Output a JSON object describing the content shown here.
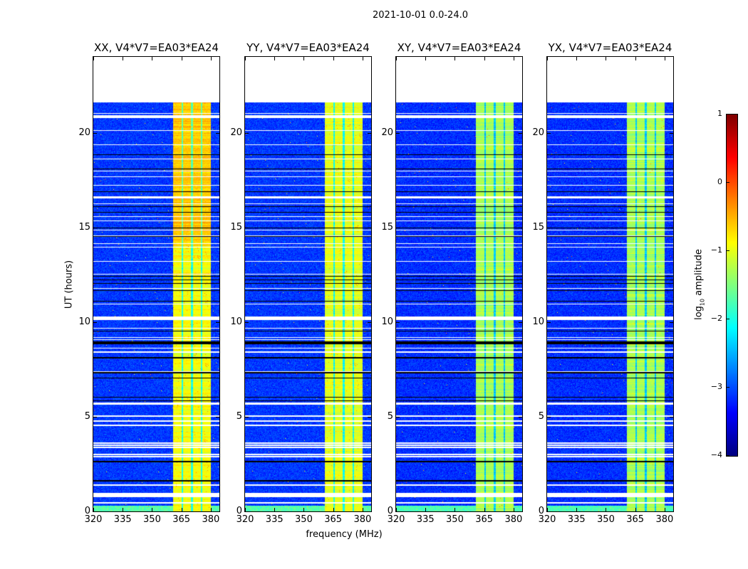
{
  "chart_data": {
    "type": "heatmap",
    "title": "2021-10-01 0.0-24.0",
    "xlabel": "frequency (MHz)",
    "ylabel": "UT (hours)",
    "xlim": [
      320,
      384.4
    ],
    "ylim": [
      0,
      24
    ],
    "xticks": [
      320,
      335,
      350,
      365,
      380
    ],
    "yticks": [
      0,
      5,
      10,
      15,
      20
    ],
    "colormap": "jet",
    "colorbar": {
      "label_main": "log",
      "label_sub": "10",
      "label_rest": " amplitude",
      "range": [
        -4,
        1
      ],
      "ticks": [
        1,
        0,
        -1,
        -2,
        -3,
        -4
      ]
    },
    "data_end_hour": 21.6,
    "panels": [
      {
        "title": "XX, V4*V7=EA03*EA24",
        "background_level": -3.1,
        "band_level": -0.9,
        "hot_level": -0.3
      },
      {
        "title": "YY, V4*V7=EA03*EA24",
        "background_level": -3.1,
        "band_level": -1.0,
        "hot_level": -0.4
      },
      {
        "title": "XY, V4*V7=EA03*EA24",
        "background_level": -3.15,
        "band_level": -1.3,
        "hot_level": -1.0
      },
      {
        "title": "YX, V4*V7=EA03*EA24",
        "background_level": -3.15,
        "band_level": -1.3,
        "hot_level": -0.9
      }
    ],
    "rfi_band_mhz": [
      360.7,
      380.0
    ],
    "rfi_band_gaps_mhz": [
      365.5,
      370.5,
      375.3
    ],
    "flagged_hours": [
      [
        21.01,
        0.05
      ],
      [
        20.83,
        0.15
      ],
      [
        20.11,
        0.05
      ],
      [
        19.36,
        0.05
      ],
      [
        18.61,
        0.05
      ],
      [
        17.97,
        0.05
      ],
      [
        17.67,
        0.05
      ],
      [
        17.22,
        0.05
      ],
      [
        16.59,
        0.1
      ],
      [
        16.25,
        0.05
      ],
      [
        15.57,
        0.05
      ],
      [
        15.35,
        0.05
      ],
      [
        14.86,
        0.05
      ],
      [
        14.56,
        0.05
      ],
      [
        14.15,
        0.05
      ],
      [
        13.96,
        0.05
      ],
      [
        13.21,
        0.05
      ],
      [
        12.53,
        0.05
      ],
      [
        11.78,
        0.05
      ],
      [
        10.96,
        0.05
      ],
      [
        10.21,
        0.18
      ],
      [
        9.68,
        0.05
      ],
      [
        9.19,
        0.05
      ],
      [
        9.08,
        0.05
      ],
      [
        8.63,
        0.05
      ],
      [
        8.41,
        0.05
      ],
      [
        7.39,
        0.05
      ],
      [
        5.7,
        0.13
      ],
      [
        5.03,
        0.05
      ],
      [
        4.77,
        0.05
      ],
      [
        4.54,
        0.05
      ],
      [
        3.6,
        0.05
      ],
      [
        3.49,
        0.05
      ],
      [
        3.38,
        0.05
      ],
      [
        3.0,
        0.05
      ],
      [
        2.89,
        0.05
      ],
      [
        1.39,
        0.06
      ],
      [
        0.86,
        0.25
      ],
      [
        0.45,
        0.05
      ]
    ],
    "zero_hours": [
      [
        18.84,
        0.05
      ],
      [
        18.09,
        0.05
      ],
      [
        16.89,
        0.05
      ],
      [
        16.1,
        0.05
      ],
      [
        15.8,
        0.05
      ],
      [
        14.97,
        0.05
      ],
      [
        14.52,
        0.05
      ],
      [
        12.42,
        0.05
      ],
      [
        12.23,
        0.05
      ],
      [
        12.05,
        0.05
      ],
      [
        11.67,
        0.05
      ],
      [
        11.11,
        0.05
      ],
      [
        9.53,
        0.05
      ],
      [
        8.89,
        0.15
      ],
      [
        8.11,
        0.05
      ],
      [
        7.32,
        0.05
      ],
      [
        7.05,
        0.05
      ],
      [
        6.04,
        0.05
      ],
      [
        5.85,
        0.05
      ],
      [
        2.63,
        0.05
      ],
      [
        1.61,
        0.1
      ]
    ]
  }
}
